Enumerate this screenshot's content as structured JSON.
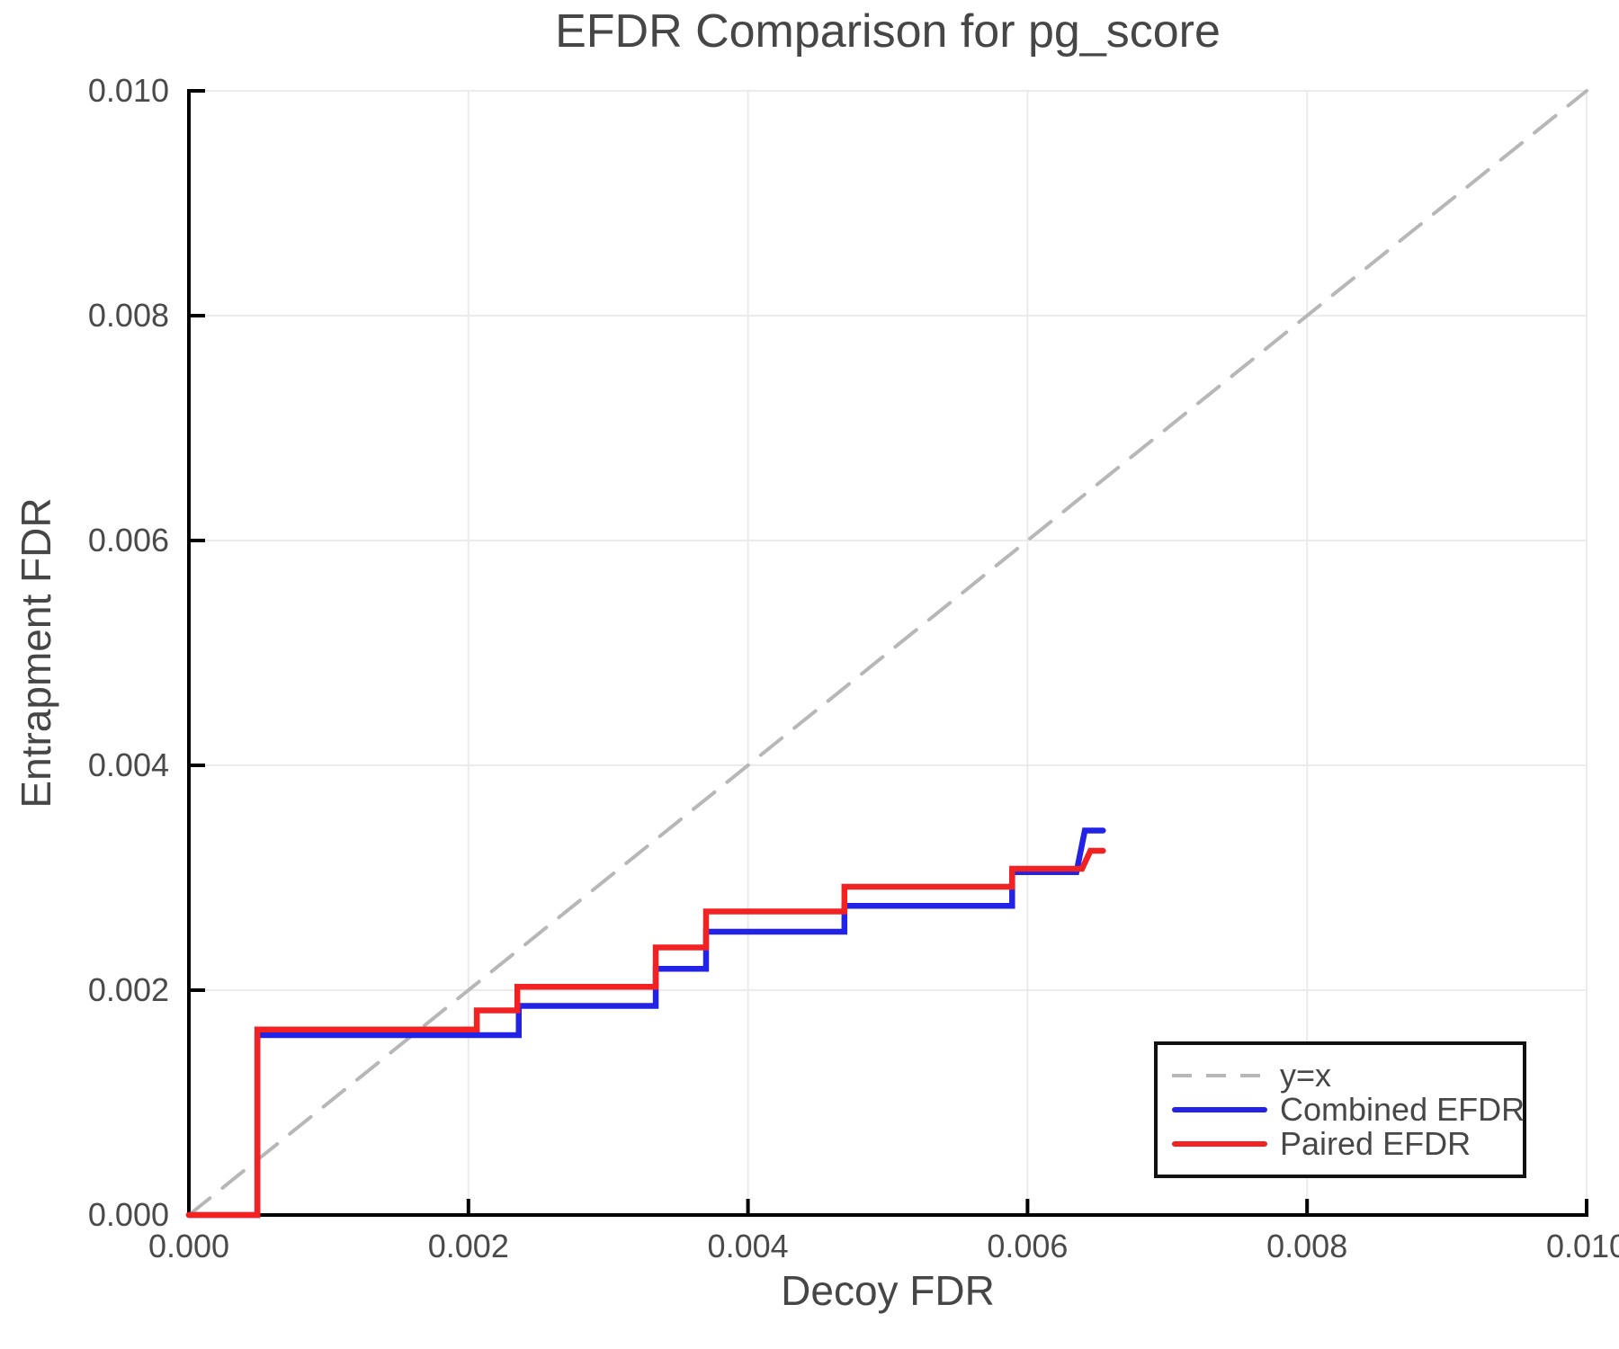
{
  "chart_data": {
    "type": "line",
    "title": "EFDR Comparison for pg_score",
    "xlabel": "Decoy FDR",
    "ylabel": "Entrapment FDR",
    "xlim": [
      0.0,
      0.01
    ],
    "ylim": [
      0.0,
      0.01
    ],
    "xticks": [
      0.0,
      0.002,
      0.004,
      0.006,
      0.008,
      0.01
    ],
    "yticks": [
      0.0,
      0.002,
      0.004,
      0.006,
      0.008,
      0.01
    ],
    "tick_decimals": 3,
    "grid": true,
    "legend_position": "lower right",
    "style": {
      "grid_color": "#ebebeb",
      "axis_color": "#000000",
      "text_color": "#474747",
      "background": "#ffffff"
    },
    "series": [
      {
        "name": "y=x",
        "kind": "reference",
        "style": "dashed",
        "color": "#b7b7b7",
        "data_name": "identity-line",
        "points": [
          [
            0.0,
            0.0
          ],
          [
            0.01,
            0.01
          ]
        ]
      },
      {
        "name": "Combined EFDR",
        "kind": "step",
        "style": "solid",
        "color": "#2323e8",
        "data_name": "combined-efdr-line",
        "points": [
          [
            0.0,
            0.0
          ],
          [
            0.00049,
            0.0
          ],
          [
            0.00049,
            0.0016
          ],
          [
            0.00236,
            0.0016
          ],
          [
            0.00236,
            0.00186
          ],
          [
            0.00334,
            0.00186
          ],
          [
            0.00334,
            0.00219
          ],
          [
            0.0037,
            0.00219
          ],
          [
            0.0037,
            0.00252
          ],
          [
            0.00469,
            0.00252
          ],
          [
            0.00469,
            0.00275
          ],
          [
            0.00589,
            0.00275
          ],
          [
            0.00589,
            0.00305
          ],
          [
            0.00635,
            0.00305
          ],
          [
            0.00641,
            0.00342
          ],
          [
            0.00654,
            0.00342
          ]
        ]
      },
      {
        "name": "Paired EFDR",
        "kind": "step",
        "style": "solid",
        "color": "#f32222",
        "data_name": "paired-efdr-line",
        "points": [
          [
            0.0,
            0.0
          ],
          [
            0.00049,
            0.0
          ],
          [
            0.00049,
            0.00165
          ],
          [
            0.00206,
            0.00165
          ],
          [
            0.00206,
            0.00182
          ],
          [
            0.00235,
            0.00182
          ],
          [
            0.00235,
            0.00203
          ],
          [
            0.00334,
            0.00203
          ],
          [
            0.00334,
            0.00238
          ],
          [
            0.0037,
            0.00238
          ],
          [
            0.0037,
            0.0027
          ],
          [
            0.00469,
            0.0027
          ],
          [
            0.00469,
            0.00292
          ],
          [
            0.00589,
            0.00292
          ],
          [
            0.00589,
            0.00308
          ],
          [
            0.00639,
            0.00308
          ],
          [
            0.00645,
            0.00324
          ],
          [
            0.00654,
            0.00324
          ]
        ]
      }
    ]
  }
}
